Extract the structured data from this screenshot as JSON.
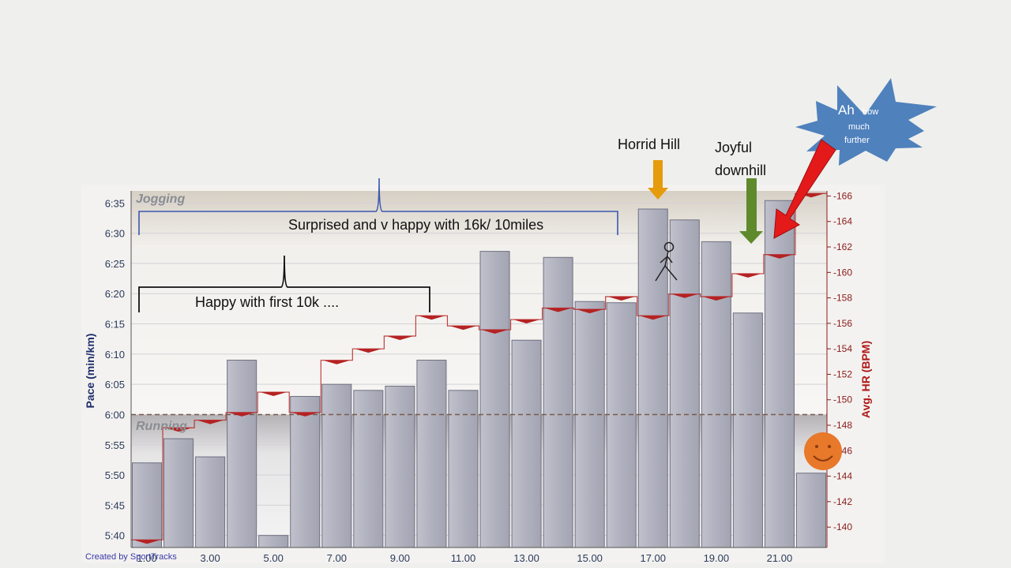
{
  "chart_data": {
    "type": "bar",
    "left_axis": {
      "label": "Pace (min/km)",
      "ticks": [
        "5:40",
        "5:45",
        "5:50",
        "5:55",
        "6:00",
        "6:05",
        "6:10",
        "6:15",
        "6:20",
        "6:25",
        "6:30",
        "6:35"
      ],
      "range_seconds": [
        338,
        397
      ]
    },
    "right_axis": {
      "label": "Avg. HR (BPM)",
      "ticks": [
        "140",
        "142",
        "144",
        "146",
        "148",
        "150",
        "152",
        "154",
        "156",
        "158",
        "160",
        "162",
        "164",
        "166"
      ],
      "range": [
        138.4,
        166.4
      ]
    },
    "x_axis": {
      "ticks": [
        "1.00",
        "3.00",
        "5.00",
        "7.00",
        "9.00",
        "11.00",
        "13.00",
        "15.00",
        "17.00",
        "19.00",
        "21.00"
      ],
      "range": [
        0.5,
        22.5
      ]
    },
    "threshold": {
      "pace": "6:00",
      "pace_seconds": 360
    },
    "zones": [
      {
        "name": "Jogging",
        "color": "#d9d1c5"
      },
      {
        "name": "Running",
        "color": "#b9b7b8"
      }
    ],
    "series": [
      {
        "name": "Pace",
        "units": "seconds per km",
        "color": "#b2b3c0",
        "x": [
          1,
          2,
          3,
          4,
          5,
          6,
          7,
          8,
          9,
          10,
          11,
          12,
          13,
          14,
          15,
          16,
          17,
          18,
          19,
          20,
          21,
          22
        ],
        "values": [
          352,
          356,
          353,
          369,
          340,
          363,
          365,
          364,
          364.7,
          369,
          364,
          387,
          372.3,
          386,
          378.7,
          378.5,
          394,
          392.2,
          388.6,
          376.8,
          395.4,
          350.3
        ]
      },
      {
        "name": "Avg. HR",
        "units": "BPM",
        "color": "#b52222",
        "x": [
          1,
          2,
          3,
          4,
          5,
          6,
          7,
          8,
          9,
          10,
          11,
          12,
          13,
          14,
          15,
          16,
          17,
          18,
          19,
          20,
          21,
          22
        ],
        "values": [
          139,
          147.8,
          148.4,
          149,
          150.6,
          149,
          153.1,
          154,
          155,
          156.6,
          155.8,
          155.5,
          156.3,
          157.2,
          157.1,
          158.1,
          156.6,
          158.3,
          158.1,
          159.9,
          161.4,
          166.2
        ]
      }
    ]
  },
  "annotations": {
    "horrid_hill": "Horrid Hill",
    "joyful_downhill_line1": "Joyful",
    "joyful_downhill_line2": "downhill",
    "surprised": "Surprised and v happy with 16k/ 10miles",
    "happy_10k": "Happy with first 10k ....",
    "burst_big": "Ah",
    "burst_how": "how",
    "burst_much": "much",
    "burst_further": "further",
    "credit": "Created by SportTracks",
    "colors": {
      "orange_arrow": "#e59b0b",
      "green_arrow": "#5f8a2c",
      "red_arrow": "#e41a1a",
      "burst": "#4f81bd",
      "smiley": "#e8782a",
      "brace_blue": "#3a58b0"
    }
  }
}
